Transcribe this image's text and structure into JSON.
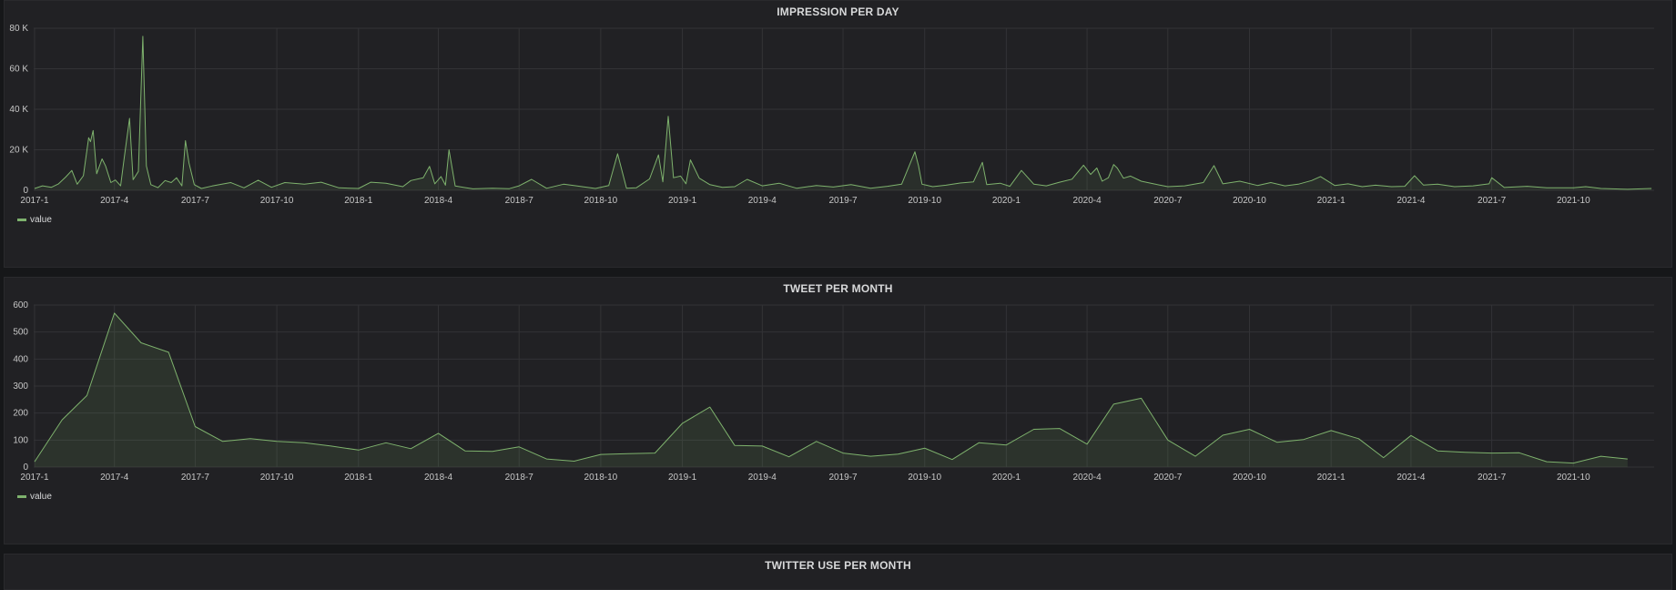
{
  "colors": {
    "series": "#7eb26d",
    "grid": "#333336",
    "panel": "#212124",
    "page": "#161719"
  },
  "chart_data": [
    {
      "type": "line",
      "title": "IMPRESSION PER DAY",
      "legend_position": "bottom-left",
      "grid": true,
      "ylim": [
        0,
        80000
      ],
      "xlim": [
        "2016-12-31",
        "2021-12-31"
      ],
      "yticks": [
        0,
        20000,
        40000,
        60000,
        80000
      ],
      "ytick_labels": [
        "0",
        "20 K",
        "40 K",
        "60 K",
        "80 K"
      ],
      "xtick_labels": [
        "2017-1",
        "2017-4",
        "2017-7",
        "2017-10",
        "2018-1",
        "2018-4",
        "2018-7",
        "2018-10",
        "2019-1",
        "2019-4",
        "2019-7",
        "2019-10",
        "2020-1",
        "2020-4",
        "2020-7",
        "2020-10",
        "2021-1",
        "2021-4",
        "2021-7",
        "2021-10"
      ],
      "series": [
        {
          "name": "value",
          "points": [
            [
              "2017-01-01",
              900
            ],
            [
              "2017-01-10",
              2200
            ],
            [
              "2017-01-20",
              1500
            ],
            [
              "2017-01-28",
              3200
            ],
            [
              "2017-02-05",
              6500
            ],
            [
              "2017-02-12",
              9800
            ],
            [
              "2017-02-18",
              3000
            ],
            [
              "2017-02-25",
              7200
            ],
            [
              "2017-03-03",
              26000
            ],
            [
              "2017-03-05",
              24000
            ],
            [
              "2017-03-08",
              29500
            ],
            [
              "2017-03-12",
              8200
            ],
            [
              "2017-03-18",
              15500
            ],
            [
              "2017-03-22",
              12000
            ],
            [
              "2017-03-28",
              3800
            ],
            [
              "2017-04-02",
              5100
            ],
            [
              "2017-04-08",
              2200
            ],
            [
              "2017-04-12",
              15800
            ],
            [
              "2017-04-18",
              35500
            ],
            [
              "2017-04-22",
              5200
            ],
            [
              "2017-04-28",
              9300
            ],
            [
              "2017-05-03",
              76000
            ],
            [
              "2017-05-07",
              12000
            ],
            [
              "2017-05-12",
              2800
            ],
            [
              "2017-05-20",
              1300
            ],
            [
              "2017-05-28",
              4800
            ],
            [
              "2017-06-04",
              3800
            ],
            [
              "2017-06-10",
              6200
            ],
            [
              "2017-06-16",
              2200
            ],
            [
              "2017-06-20",
              24500
            ],
            [
              "2017-06-24",
              13500
            ],
            [
              "2017-06-30",
              2800
            ],
            [
              "2017-07-08",
              900
            ],
            [
              "2017-07-20",
              2100
            ],
            [
              "2017-08-10",
              3800
            ],
            [
              "2017-08-25",
              1200
            ],
            [
              "2017-09-10",
              5000
            ],
            [
              "2017-09-25",
              1500
            ],
            [
              "2017-10-10",
              3800
            ],
            [
              "2017-11-01",
              3000
            ],
            [
              "2017-11-20",
              4000
            ],
            [
              "2017-12-10",
              1200
            ],
            [
              "2018-01-01",
              900
            ],
            [
              "2018-01-15",
              4000
            ],
            [
              "2018-02-01",
              3500
            ],
            [
              "2018-02-20",
              1800
            ],
            [
              "2018-03-01",
              4800
            ],
            [
              "2018-03-15",
              6200
            ],
            [
              "2018-03-22",
              11800
            ],
            [
              "2018-03-28",
              3200
            ],
            [
              "2018-04-04",
              6800
            ],
            [
              "2018-04-09",
              2500
            ],
            [
              "2018-04-13",
              20000
            ],
            [
              "2018-04-20",
              2100
            ],
            [
              "2018-05-10",
              700
            ],
            [
              "2018-06-01",
              1000
            ],
            [
              "2018-06-20",
              800
            ],
            [
              "2018-07-01",
              2200
            ],
            [
              "2018-07-15",
              5400
            ],
            [
              "2018-08-01",
              1000
            ],
            [
              "2018-08-20",
              3000
            ],
            [
              "2018-09-10",
              1800
            ],
            [
              "2018-09-25",
              900
            ],
            [
              "2018-10-10",
              2400
            ],
            [
              "2018-10-20",
              18000
            ],
            [
              "2018-10-30",
              1000
            ],
            [
              "2018-11-10",
              1200
            ],
            [
              "2018-11-25",
              5600
            ],
            [
              "2018-12-05",
              17500
            ],
            [
              "2018-12-10",
              4200
            ],
            [
              "2018-12-16",
              36500
            ],
            [
              "2018-12-22",
              6200
            ],
            [
              "2018-12-30",
              7000
            ],
            [
              "2019-01-05",
              3200
            ],
            [
              "2019-01-10",
              15000
            ],
            [
              "2019-01-20",
              6000
            ],
            [
              "2019-02-01",
              2800
            ],
            [
              "2019-02-15",
              1500
            ],
            [
              "2019-03-01",
              1800
            ],
            [
              "2019-03-15",
              5400
            ],
            [
              "2019-04-01",
              2200
            ],
            [
              "2019-04-20",
              3500
            ],
            [
              "2019-05-10",
              1000
            ],
            [
              "2019-06-01",
              2400
            ],
            [
              "2019-06-20",
              1600
            ],
            [
              "2019-07-10",
              2800
            ],
            [
              "2019-08-01",
              1000
            ],
            [
              "2019-08-20",
              2000
            ],
            [
              "2019-09-05",
              3000
            ],
            [
              "2019-09-20",
              19000
            ],
            [
              "2019-09-24",
              12200
            ],
            [
              "2019-09-28",
              3000
            ],
            [
              "2019-10-10",
              1800
            ],
            [
              "2019-10-25",
              2500
            ],
            [
              "2019-11-10",
              3600
            ],
            [
              "2019-11-25",
              4200
            ],
            [
              "2019-12-05",
              13800
            ],
            [
              "2019-12-10",
              2800
            ],
            [
              "2019-12-25",
              3500
            ],
            [
              "2020-01-05",
              2000
            ],
            [
              "2020-01-18",
              9800
            ],
            [
              "2020-02-01",
              3000
            ],
            [
              "2020-02-15",
              2200
            ],
            [
              "2020-03-01",
              4000
            ],
            [
              "2020-03-15",
              5500
            ],
            [
              "2020-03-28",
              12400
            ],
            [
              "2020-04-05",
              7800
            ],
            [
              "2020-04-12",
              11000
            ],
            [
              "2020-04-18",
              4500
            ],
            [
              "2020-04-25",
              6200
            ],
            [
              "2020-05-01",
              12700
            ],
            [
              "2020-05-05",
              11000
            ],
            [
              "2020-05-12",
              6000
            ],
            [
              "2020-05-20",
              7000
            ],
            [
              "2020-06-01",
              4500
            ],
            [
              "2020-06-15",
              3200
            ],
            [
              "2020-07-01",
              1800
            ],
            [
              "2020-07-20",
              2200
            ],
            [
              "2020-08-10",
              3800
            ],
            [
              "2020-08-22",
              12200
            ],
            [
              "2020-09-01",
              3200
            ],
            [
              "2020-09-20",
              4500
            ],
            [
              "2020-10-10",
              2400
            ],
            [
              "2020-10-25",
              3800
            ],
            [
              "2020-11-10",
              2200
            ],
            [
              "2020-11-25",
              3000
            ],
            [
              "2020-12-10",
              4800
            ],
            [
              "2020-12-20",
              6800
            ],
            [
              "2021-01-05",
              2400
            ],
            [
              "2021-01-20",
              3200
            ],
            [
              "2021-02-05",
              1800
            ],
            [
              "2021-02-20",
              2500
            ],
            [
              "2021-03-10",
              1800
            ],
            [
              "2021-03-25",
              2000
            ],
            [
              "2021-04-05",
              7200
            ],
            [
              "2021-04-15",
              2600
            ],
            [
              "2021-05-01",
              3000
            ],
            [
              "2021-05-20",
              1800
            ],
            [
              "2021-06-10",
              2200
            ],
            [
              "2021-06-28",
              3200
            ],
            [
              "2021-07-01",
              6200
            ],
            [
              "2021-07-15",
              1400
            ],
            [
              "2021-08-10",
              2000
            ],
            [
              "2021-09-01",
              1200
            ],
            [
              "2021-10-01",
              1200
            ],
            [
              "2021-10-15",
              1800
            ],
            [
              "2021-11-01",
              900
            ],
            [
              "2021-12-01",
              500
            ],
            [
              "2021-12-28",
              900
            ]
          ]
        }
      ]
    },
    {
      "type": "area",
      "title": "TWEET PER MONTH",
      "legend_position": "bottom-left",
      "grid": true,
      "ylim": [
        0,
        600
      ],
      "xlim": [
        "2016-12-31",
        "2021-12-31"
      ],
      "yticks": [
        0,
        100,
        200,
        300,
        400,
        500,
        600
      ],
      "ytick_labels": [
        "0",
        "100",
        "200",
        "300",
        "400",
        "500",
        "600"
      ],
      "xtick_labels": [
        "2017-1",
        "2017-4",
        "2017-7",
        "2017-10",
        "2018-1",
        "2018-4",
        "2018-7",
        "2018-10",
        "2019-1",
        "2019-4",
        "2019-7",
        "2019-10",
        "2020-1",
        "2020-4",
        "2020-7",
        "2020-10",
        "2021-1",
        "2021-4",
        "2021-7",
        "2021-10"
      ],
      "categories": [
        "2017-01",
        "2017-02",
        "2017-03",
        "2017-04",
        "2017-05",
        "2017-06",
        "2017-07",
        "2017-08",
        "2017-09",
        "2017-10",
        "2017-11",
        "2017-12",
        "2018-01",
        "2018-02",
        "2018-03",
        "2018-04",
        "2018-05",
        "2018-06",
        "2018-07",
        "2018-08",
        "2018-09",
        "2018-10",
        "2018-11",
        "2018-12",
        "2019-01",
        "2019-02",
        "2019-03",
        "2019-04",
        "2019-05",
        "2019-06",
        "2019-07",
        "2019-08",
        "2019-09",
        "2019-10",
        "2019-11",
        "2019-12",
        "2020-01",
        "2020-02",
        "2020-03",
        "2020-04",
        "2020-05",
        "2020-06",
        "2020-07",
        "2020-08",
        "2020-09",
        "2020-10",
        "2020-11",
        "2020-12",
        "2021-01",
        "2021-02",
        "2021-03",
        "2021-04",
        "2021-05",
        "2021-06",
        "2021-07",
        "2021-08",
        "2021-09",
        "2021-10",
        "2021-11",
        "2021-12"
      ],
      "series": [
        {
          "name": "value",
          "values": [
            20,
            175,
            265,
            570,
            460,
            425,
            150,
            95,
            105,
            95,
            90,
            78,
            63,
            90,
            68,
            125,
            60,
            58,
            75,
            30,
            22,
            47,
            50,
            52,
            162,
            222,
            80,
            78,
            38,
            95,
            52,
            40,
            48,
            70,
            28,
            90,
            82,
            140,
            143,
            85,
            233,
            255,
            100,
            40,
            118,
            140,
            92,
            102,
            135,
            105,
            35,
            117,
            60,
            55,
            52,
            53,
            20,
            15,
            40,
            30
          ]
        }
      ]
    },
    {
      "type": "line",
      "title": "TWITTER USE PER MONTH"
    }
  ]
}
